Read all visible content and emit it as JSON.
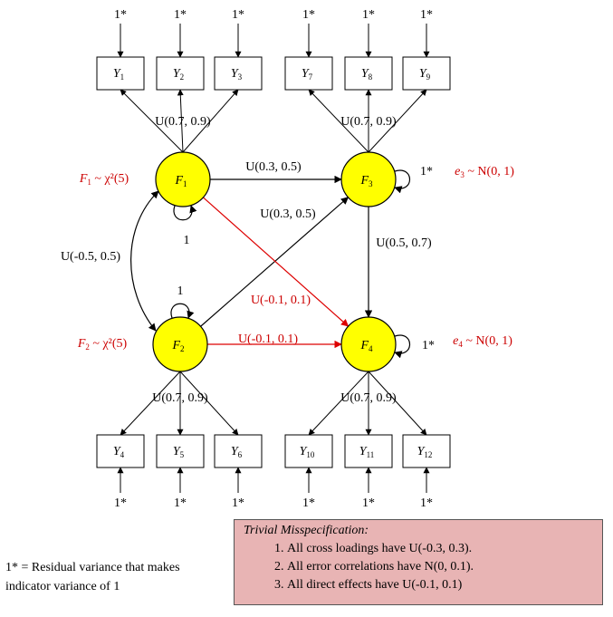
{
  "indicators": [
    {
      "letter": "Y",
      "sub": "1"
    },
    {
      "letter": "Y",
      "sub": "2"
    },
    {
      "letter": "Y",
      "sub": "3"
    },
    {
      "letter": "Y",
      "sub": "7"
    },
    {
      "letter": "Y",
      "sub": "8"
    },
    {
      "letter": "Y",
      "sub": "9"
    },
    {
      "letter": "Y",
      "sub": "4"
    },
    {
      "letter": "Y",
      "sub": "5"
    },
    {
      "letter": "Y",
      "sub": "6"
    },
    {
      "letter": "Y",
      "sub": "10"
    },
    {
      "letter": "Y",
      "sub": "11"
    },
    {
      "letter": "Y",
      "sub": "12"
    }
  ],
  "residual_label": "1*",
  "factors": [
    {
      "letter": "F",
      "sub": "1"
    },
    {
      "letter": "F",
      "sub": "3"
    },
    {
      "letter": "F",
      "sub": "2"
    },
    {
      "letter": "F",
      "sub": "4"
    }
  ],
  "distributions": {
    "f1": {
      "pre": "F",
      "sub": "1",
      "post": " ~ χ²(5)"
    },
    "f2": {
      "pre": "F",
      "sub": "2",
      "post": " ~ χ²(5)"
    },
    "f3": {
      "pre": "e",
      "sub": "3",
      "post": " ~ N(0, 1)"
    },
    "f4": {
      "pre": "e",
      "sub": "4",
      "post": " ~ N(0, 1)"
    }
  },
  "loading_labels": {
    "f1": "U(0.7, 0.9)",
    "f3": "U(0.7, 0.9)",
    "f2": "U(0.7, 0.9)",
    "f4": "U(0.7, 0.9)"
  },
  "path_labels": {
    "f1_f3": "U(0.3, 0.5)",
    "f2_f3": "U(0.3, 0.5)",
    "f3_f4": "U(0.5, 0.7)",
    "f1_f2_cov": "U(-0.5, 0.5)",
    "f1_f4": "U(-0.1, 0.1)",
    "f2_f4": "U(-0.1, 0.1)"
  },
  "variance_labels": {
    "f1": "1",
    "f2": "1",
    "f3": "1*",
    "f4": "1*"
  },
  "legend": "1* = Residual variance that makes indicator variance of 1",
  "note": {
    "title": "Trivial Misspecification:",
    "items": [
      "All cross loadings have U(-0.3, 0.3).",
      "All error correlations have N(0, 0.1).",
      "All direct effects have U(-0.1, 0.1)"
    ]
  },
  "colors": {
    "factor_fill": "#ffff00",
    "misspec_path": "#dd0000",
    "note_bg": "#e8b4b4"
  }
}
